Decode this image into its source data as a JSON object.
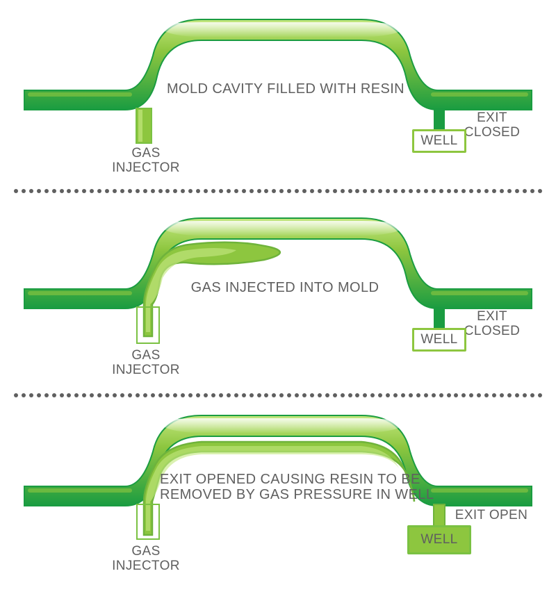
{
  "type": "infographic",
  "background_color": "#ffffff",
  "text_color": "#5f5f5f",
  "divider": {
    "dot_color": "#5f5f5f",
    "dot_count": 70,
    "dot_radius": 3
  },
  "palette": {
    "green_dark": "#1a9c41",
    "green_mid": "#37b34a",
    "green_light": "#8dc63f",
    "green_lighter": "#a4d65e",
    "green_highlight": "#c3e77f",
    "green_outline": "#7ac142"
  },
  "typography": {
    "caption_fontsize": 20,
    "small_fontsize": 19,
    "font_family": "Arial Narrow"
  },
  "panels": [
    {
      "id": "p1",
      "caption": "MOLD CAVITY FILLED WITH RESIN",
      "gas_bubble": false,
      "gas_channel": false,
      "well_filled": false,
      "injector_label": "GAS\nINJECTOR",
      "exit_label": "EXIT CLOSED",
      "well_label": "WELL",
      "well_border_color": "#8dc63f",
      "well_bg_color": "#ffffff"
    },
    {
      "id": "p2",
      "caption": "GAS INJECTED INTO MOLD",
      "gas_bubble": true,
      "gas_channel": false,
      "well_filled": false,
      "injector_label": "GAS\nINJECTOR",
      "exit_label": "EXIT CLOSED",
      "well_label": "WELL",
      "well_border_color": "#8dc63f",
      "well_bg_color": "#ffffff"
    },
    {
      "id": "p3",
      "caption": "EXIT OPENED CAUSING RESIN TO BE\nREMOVED BY GAS PRESSURE IN WELL",
      "gas_bubble": false,
      "gas_channel": true,
      "well_filled": true,
      "injector_label": "GAS\nINJECTOR",
      "exit_label": "EXIT OPEN",
      "well_label": "WELL",
      "well_border_color": "#7ac142",
      "well_bg_color": "#8dc63f"
    }
  ]
}
